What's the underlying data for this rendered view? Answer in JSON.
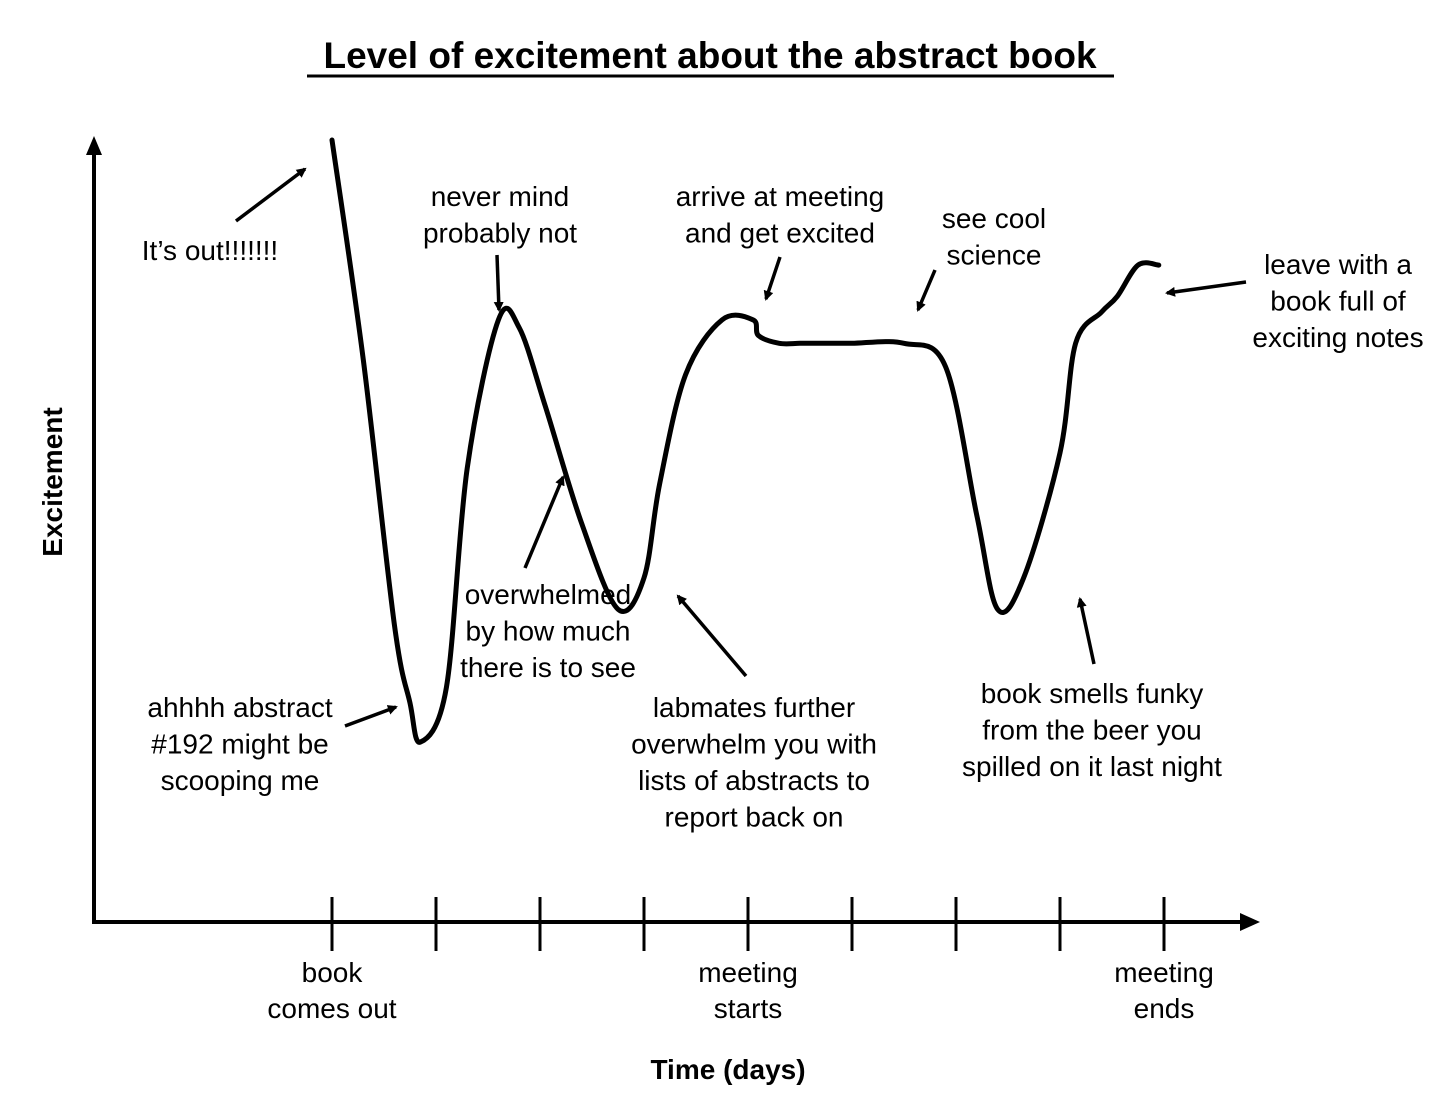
{
  "chart_data": {
    "type": "line",
    "title": "Level of excitement about the abstract book",
    "xlabel": "Time (days)",
    "ylabel": "Excitement",
    "x_ticks": [
      "book\ncomes out",
      "",
      "",
      "",
      "meeting\nstarts",
      "",
      "",
      "",
      "meeting\nends"
    ],
    "ylim": [
      0,
      100
    ],
    "grid": false,
    "legend": "none",
    "series": [
      {
        "x": [
          0.0,
          0.3,
          0.6,
          0.75,
          0.85,
          1.1,
          1.3,
          1.6,
          1.8,
          2.05,
          2.4,
          2.75,
          3.0,
          3.15,
          3.4,
          3.75,
          4.05,
          4.1,
          4.3,
          4.5,
          4.7,
          4.75,
          5.0,
          5.5,
          5.9,
          6.2,
          6.4,
          6.65,
          7.0,
          7.15,
          7.4,
          7.55,
          7.75,
          7.95
        ],
        "y": [
          100,
          72,
          38,
          28,
          23,
          30,
          58,
          77,
          76,
          66,
          51,
          40,
          44,
          56,
          70,
          77,
          77,
          75,
          74,
          74,
          74,
          74,
          74,
          74,
          71,
          52,
          40,
          44,
          60,
          74,
          78,
          80,
          84,
          84
        ]
      }
    ],
    "annotations": [
      {
        "label": "It’s out!!!!!!!"
      },
      {
        "label": "never mind\nprobably not"
      },
      {
        "label": "arrive at meeting\nand get excited"
      },
      {
        "label": "see cool\nscience"
      },
      {
        "label": "leave with a\nbook full of\nexciting notes"
      },
      {
        "label": "overwhelmed\nby how much\nthere is to see"
      },
      {
        "label": "ahhhh abstract\n#192 might be\nscooping me"
      },
      {
        "label": "labmates further\noverwhelm you with\nlists of abstracts to\nreport back on"
      },
      {
        "label": "book smells funky\nfrom the beer you\nspilled on it last night"
      }
    ]
  }
}
